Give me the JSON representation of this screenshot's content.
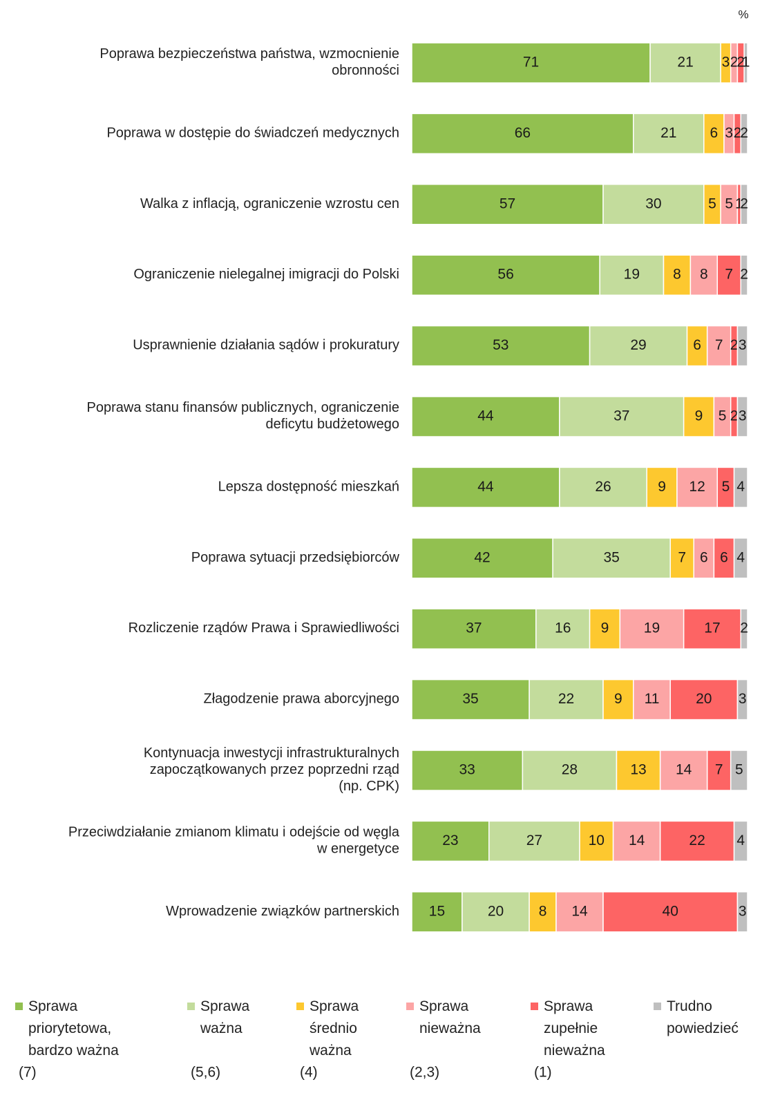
{
  "chart_data": {
    "type": "stacked_bar_horizontal",
    "unit": "%",
    "categories": [
      "Poprawa bezpieczeństwa państwa, wzmocnienie\nobronności",
      "Poprawa w dostępie do świadczeń medycznych",
      "Walka z inflacją, ograniczenie wzrostu cen",
      "Ograniczenie nielegalnej imigracji do Polski",
      "Usprawnienie działania sądów i prokuratury",
      "Poprawa stanu finansów publicznych, ograniczenie\ndeficytu budżetowego",
      "Lepsza dostępność mieszkań",
      "Poprawa sytuacji przedsiębiorców",
      "Rozliczenie rządów Prawa i Sprawiedliwości",
      "Złagodzenie prawa aborcyjnego",
      "Kontynuacja inwestycji infrastrukturalnych\nzapoczątkowanych przez poprzedni rząd\n(np. CPK)",
      "Przeciwdziałanie zmianom klimatu i odejście od węgla\nw energetyce",
      "Wprowadzenie związków partnerskich"
    ],
    "xlim": [
      0,
      100
    ],
    "series": [
      {
        "name": "Sprawa\npriorytetowa,\nbardzo ważna",
        "code": "(7)",
        "color": "#92c050",
        "values": [
          71,
          66,
          57,
          56,
          53,
          44,
          44,
          42,
          37,
          35,
          33,
          23,
          15
        ]
      },
      {
        "name": "Sprawa\nważna",
        "code": "(5,6)",
        "color": "#c3dc9c",
        "values": [
          21,
          21,
          30,
          19,
          29,
          37,
          26,
          35,
          16,
          22,
          28,
          27,
          20
        ]
      },
      {
        "name": "Sprawa\nśrednio\nważna",
        "code": "(4)",
        "color": "#fdc82f",
        "values": [
          3,
          6,
          5,
          8,
          6,
          9,
          9,
          7,
          9,
          9,
          13,
          10,
          8
        ]
      },
      {
        "name": "Sprawa\nnieważna",
        "code": "(2,3)",
        "color": "#fca5a5",
        "values": [
          2,
          3,
          5,
          8,
          7,
          5,
          12,
          6,
          19,
          11,
          14,
          14,
          14
        ]
      },
      {
        "name": "Sprawa\nzupełnie\nnieważna",
        "code": "(1)",
        "color": "#fd6464",
        "values": [
          2,
          2,
          1,
          7,
          2,
          2,
          5,
          6,
          17,
          20,
          7,
          22,
          40
        ]
      },
      {
        "name": "Trudno\npowiedzieć",
        "color": "#bfbfbf",
        "values": [
          1,
          2,
          2,
          2,
          3,
          3,
          4,
          4,
          2,
          3,
          5,
          4,
          3
        ]
      }
    ]
  }
}
